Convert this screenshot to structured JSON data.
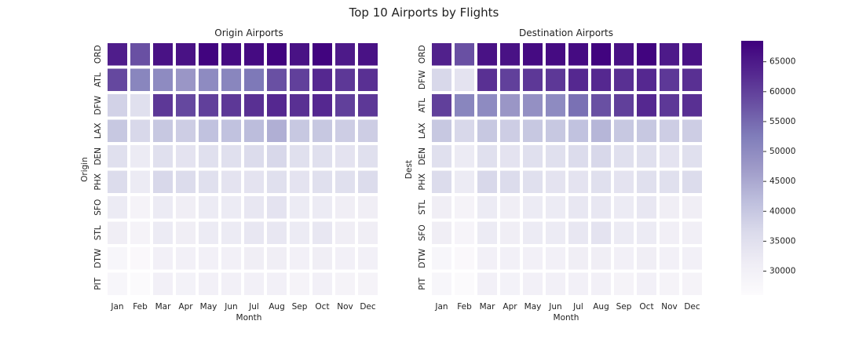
{
  "figure": {
    "title": "Top 10 Airports by Flights"
  },
  "chart_data": [
    {
      "type": "heatmap",
      "title": "Origin Airports",
      "xlabel": "Month",
      "ylabel": "Origin",
      "x": [
        "Jan",
        "Feb",
        "Mar",
        "Apr",
        "May",
        "Jun",
        "Jul",
        "Aug",
        "Sep",
        "Oct",
        "Nov",
        "Dec"
      ],
      "y": [
        "ORD",
        "ATL",
        "DFW",
        "LAX",
        "DEN",
        "PHX",
        "SFO",
        "STL",
        "DTW",
        "PIT"
      ],
      "values": [
        [
          64500,
          58000,
          66000,
          66000,
          68000,
          67000,
          67000,
          68000,
          66000,
          68000,
          65000,
          66000
        ],
        [
          59000,
          51000,
          50000,
          48000,
          50000,
          51000,
          53000,
          58000,
          60000,
          63000,
          61000,
          62000
        ],
        [
          38000,
          35000,
          61000,
          59000,
          60000,
          61000,
          62000,
          63000,
          62000,
          63000,
          60000,
          61000
        ],
        [
          40000,
          37000,
          40000,
          39000,
          41000,
          41000,
          42000,
          44000,
          40000,
          40000,
          39000,
          39000
        ],
        [
          35000,
          32000,
          35000,
          34000,
          35000,
          35000,
          36000,
          37000,
          35000,
          35000,
          34000,
          35000
        ],
        [
          36000,
          32000,
          37000,
          36000,
          35000,
          34000,
          34000,
          35000,
          34000,
          35000,
          35000,
          36000
        ],
        [
          32000,
          29000,
          32000,
          31000,
          32000,
          32000,
          33000,
          34000,
          32000,
          32000,
          31000,
          31000
        ],
        [
          31000,
          29000,
          32000,
          31000,
          32000,
          32000,
          33000,
          33000,
          32000,
          33000,
          31000,
          31000
        ],
        [
          28000,
          27000,
          30000,
          30000,
          30000,
          30000,
          31000,
          31000,
          30000,
          31000,
          30000,
          30000
        ],
        [
          28000,
          26500,
          30000,
          29500,
          30000,
          30000,
          30000,
          30000,
          29000,
          30000,
          29000,
          29000
        ]
      ]
    },
    {
      "type": "heatmap",
      "title": "Destination Airports",
      "xlabel": "Month",
      "ylabel": "Dest",
      "x": [
        "Jan",
        "Feb",
        "Mar",
        "Apr",
        "May",
        "Jun",
        "Jul",
        "Aug",
        "Sep",
        "Oct",
        "Nov",
        "Dec"
      ],
      "y": [
        "ORD",
        "DFW",
        "ATL",
        "LAX",
        "DEN",
        "PHX",
        "STL",
        "SFO",
        "DTW",
        "PIT"
      ],
      "values": [
        [
          64000,
          58000,
          66000,
          66000,
          67000,
          67000,
          67000,
          68000,
          66000,
          68000,
          65000,
          66000
        ],
        [
          37000,
          34000,
          62000,
          60000,
          61000,
          61000,
          63000,
          63000,
          62000,
          63000,
          61000,
          62000
        ],
        [
          60000,
          51000,
          50000,
          48000,
          49000,
          50000,
          54000,
          58000,
          60000,
          63000,
          61000,
          62000
        ],
        [
          40000,
          37000,
          40000,
          39000,
          40000,
          40000,
          41000,
          43000,
          40000,
          40000,
          39000,
          39000
        ],
        [
          35000,
          32000,
          35000,
          34000,
          35000,
          35000,
          36000,
          37000,
          35000,
          35000,
          34000,
          35000
        ],
        [
          36000,
          32000,
          37000,
          36000,
          35000,
          34000,
          34000,
          35000,
          34000,
          35000,
          35000,
          36000
        ],
        [
          31000,
          29000,
          32000,
          31000,
          32000,
          32000,
          33000,
          33000,
          32000,
          33000,
          31000,
          31000
        ],
        [
          31000,
          28500,
          32000,
          31000,
          32000,
          32000,
          33000,
          34000,
          32000,
          32000,
          30500,
          30500
        ],
        [
          28000,
          27000,
          30000,
          30000,
          30000,
          30000,
          31000,
          31000,
          30000,
          31000,
          30000,
          30000
        ],
        [
          28000,
          26500,
          30000,
          29500,
          30000,
          30000,
          30000,
          30000,
          29000,
          30000,
          29000,
          29000
        ]
      ]
    }
  ],
  "colorbar": {
    "colormap": "Purples",
    "min": 26000,
    "max": 68500,
    "ticks": [
      30000,
      35000,
      40000,
      45000,
      50000,
      55000,
      60000,
      65000
    ],
    "tick_labels": [
      "30000",
      "35000",
      "40000",
      "45000",
      "50000",
      "55000",
      "60000",
      "65000"
    ],
    "colors_low_to_high": [
      "#fcfbfd",
      "#efedf5",
      "#dadaeb",
      "#bcbddc",
      "#9e9ac8",
      "#807dba",
      "#6a51a3",
      "#54278f",
      "#3f007d"
    ]
  }
}
